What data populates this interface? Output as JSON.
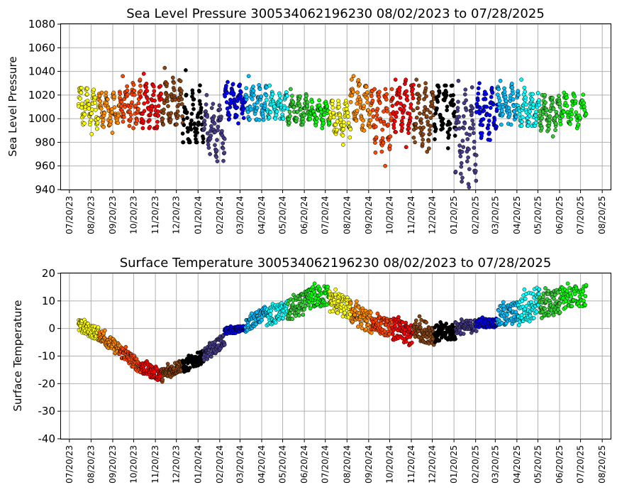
{
  "chart_data": [
    {
      "type": "scatter",
      "title": "Sea Level Pressure 300534062196230  08/02/2023 to 07/28/2025",
      "xlabel": "",
      "ylabel": "Sea Level Pressure",
      "ylim": [
        940,
        1080
      ],
      "yticks": [
        940,
        960,
        980,
        1000,
        1020,
        1040,
        1060,
        1080
      ],
      "xlim": [
        "2023-07-08",
        "2025-09-01"
      ],
      "xticks": [
        "07/20/23",
        "08/20/23",
        "09/20/23",
        "10/20/23",
        "11/20/23",
        "12/20/23",
        "01/20/24",
        "02/20/24",
        "03/20/24",
        "04/20/24",
        "05/20/24",
        "06/20/24",
        "07/20/24",
        "08/20/24",
        "09/20/24",
        "10/20/24",
        "11/20/24",
        "12/20/24",
        "01/20/25",
        "02/20/25",
        "03/20/25",
        "04/20/25",
        "05/20/25",
        "06/20/25",
        "07/20/25",
        "08/20/25"
      ],
      "grid": true,
      "segment_colors": [
        "#ffff00",
        "#ff8c00",
        "#ff4500",
        "#ff0000",
        "#8b4513",
        "#000000",
        "#483d8b",
        "#0000ff",
        "#00bfff",
        "#00ffff",
        "#32cd32",
        "#00ff00",
        "#ffff00",
        "#ff8c00",
        "#ff4500",
        "#ff0000",
        "#8b4513",
        "#000000",
        "#483d8b",
        "#0000ff",
        "#00bfff",
        "#00ffff",
        "#32cd32",
        "#00ff00"
      ],
      "segments": [
        {
          "start": "2023-08-02",
          "end": "2023-08-31",
          "color_index": 0,
          "center": 1010,
          "low": 987,
          "high": 1026
        },
        {
          "start": "2023-08-31",
          "end": "2023-09-30",
          "color_index": 1,
          "center": 1007,
          "low": 988,
          "high": 1022
        },
        {
          "start": "2023-09-30",
          "end": "2023-10-30",
          "color_index": 2,
          "center": 1013,
          "low": 992,
          "high": 1036
        },
        {
          "start": "2023-10-30",
          "end": "2023-11-29",
          "color_index": 3,
          "center": 1010,
          "low": 992,
          "high": 1038
        },
        {
          "start": "2023-11-29",
          "end": "2023-12-29",
          "color_index": 4,
          "center": 1012,
          "low": 995,
          "high": 1043
        },
        {
          "start": "2023-12-29",
          "end": "2024-01-28",
          "color_index": 5,
          "center": 1000,
          "low": 980,
          "high": 1041
        },
        {
          "start": "2024-01-28",
          "end": "2024-02-27",
          "color_index": 6,
          "center": 990,
          "low": 964,
          "high": 1020
        },
        {
          "start": "2024-02-27",
          "end": "2024-03-28",
          "color_index": 7,
          "center": 1015,
          "low": 996,
          "high": 1031
        },
        {
          "start": "2024-03-28",
          "end": "2024-04-27",
          "color_index": 8,
          "center": 1012,
          "low": 999,
          "high": 1036
        },
        {
          "start": "2024-04-27",
          "end": "2024-05-27",
          "color_index": 9,
          "center": 1010,
          "low": 1000,
          "high": 1028
        },
        {
          "start": "2024-05-27",
          "end": "2024-06-26",
          "color_index": 10,
          "center": 1008,
          "low": 995,
          "high": 1025
        },
        {
          "start": "2024-06-26",
          "end": "2024-07-26",
          "color_index": 11,
          "center": 1005,
          "low": 992,
          "high": 1016
        },
        {
          "start": "2024-07-26",
          "end": "2024-08-25",
          "color_index": 12,
          "center": 1000,
          "low": 978,
          "high": 1015
        },
        {
          "start": "2024-08-25",
          "end": "2024-09-24",
          "color_index": 13,
          "center": 1012,
          "low": 990,
          "high": 1036
        },
        {
          "start": "2024-09-24",
          "end": "2024-10-24",
          "color_index": 14,
          "center": 1000,
          "low": 960,
          "high": 1025
        },
        {
          "start": "2024-10-24",
          "end": "2024-11-23",
          "color_index": 15,
          "center": 1010,
          "low": 976,
          "high": 1033
        },
        {
          "start": "2024-11-23",
          "end": "2024-12-23",
          "color_index": 16,
          "center": 1003,
          "low": 972,
          "high": 1033
        },
        {
          "start": "2024-12-23",
          "end": "2025-01-22",
          "color_index": 17,
          "center": 1008,
          "low": 975,
          "high": 1028
        },
        {
          "start": "2025-01-22",
          "end": "2025-02-21",
          "color_index": 18,
          "center": 985,
          "low": 942,
          "high": 1032
        },
        {
          "start": "2025-02-21",
          "end": "2025-03-23",
          "color_index": 19,
          "center": 1005,
          "low": 982,
          "high": 1030
        },
        {
          "start": "2025-03-23",
          "end": "2025-04-22",
          "color_index": 20,
          "center": 1012,
          "low": 995,
          "high": 1032
        },
        {
          "start": "2025-04-22",
          "end": "2025-05-22",
          "color_index": 21,
          "center": 1008,
          "low": 994,
          "high": 1033
        },
        {
          "start": "2025-05-22",
          "end": "2025-06-21",
          "color_index": 22,
          "center": 1005,
          "low": 985,
          "high": 1020
        },
        {
          "start": "2025-06-21",
          "end": "2025-07-28",
          "color_index": 23,
          "center": 1008,
          "low": 992,
          "high": 1022
        }
      ]
    },
    {
      "type": "scatter",
      "title": "Surface Temperature 300534062196230  08/02/2023 to 07/28/2025",
      "xlabel": "",
      "ylabel": "Surface Temperature",
      "ylim": [
        -40,
        20
      ],
      "yticks": [
        -40,
        -30,
        -20,
        -10,
        0,
        10,
        20
      ],
      "xlim": [
        "2023-07-08",
        "2025-09-01"
      ],
      "xticks": [
        "07/20/23",
        "08/20/23",
        "09/20/23",
        "10/20/23",
        "11/20/23",
        "12/20/23",
        "01/20/24",
        "02/20/24",
        "03/20/24",
        "04/20/24",
        "05/20/24",
        "06/20/24",
        "07/20/24",
        "08/20/24",
        "09/20/24",
        "10/20/24",
        "11/20/24",
        "12/20/24",
        "01/20/25",
        "02/20/25",
        "03/20/25",
        "04/20/25",
        "05/20/25",
        "06/20/25",
        "07/20/25",
        "08/20/25"
      ],
      "grid": true,
      "segment_colors": [
        "#ffff00",
        "#ff8c00",
        "#ff4500",
        "#ff0000",
        "#8b4513",
        "#000000",
        "#483d8b",
        "#0000ff",
        "#00bfff",
        "#00ffff",
        "#32cd32",
        "#00ff00",
        "#ffff00",
        "#ff8c00",
        "#ff4500",
        "#ff0000",
        "#8b4513",
        "#000000",
        "#483d8b",
        "#0000ff",
        "#00bfff",
        "#00ffff",
        "#32cd32",
        "#00ff00"
      ],
      "segments": [
        {
          "start": "2023-08-02",
          "end": "2023-08-31",
          "color_index": 0,
          "from": 1,
          "to": -2,
          "spread": 3
        },
        {
          "start": "2023-08-31",
          "end": "2023-09-30",
          "color_index": 1,
          "from": -2,
          "to": -8,
          "spread": 3
        },
        {
          "start": "2023-09-30",
          "end": "2023-10-30",
          "color_index": 2,
          "from": -8,
          "to": -14,
          "spread": 3
        },
        {
          "start": "2023-10-30",
          "end": "2023-11-29",
          "color_index": 3,
          "from": -14,
          "to": -17,
          "spread": 3
        },
        {
          "start": "2023-11-29",
          "end": "2023-12-29",
          "color_index": 4,
          "from": -17,
          "to": -13,
          "spread": 3
        },
        {
          "start": "2023-12-29",
          "end": "2024-01-28",
          "color_index": 5,
          "from": -14,
          "to": -10,
          "spread": 3
        },
        {
          "start": "2024-01-28",
          "end": "2024-02-27",
          "color_index": 6,
          "from": -10,
          "to": -4,
          "spread": 3
        },
        {
          "start": "2024-02-27",
          "end": "2024-03-28",
          "color_index": 7,
          "from": -1,
          "to": 0,
          "spread": 1.5
        },
        {
          "start": "2024-03-28",
          "end": "2024-04-27",
          "color_index": 8,
          "from": 1,
          "to": 6,
          "spread": 3
        },
        {
          "start": "2024-04-27",
          "end": "2024-05-27",
          "color_index": 9,
          "from": 4,
          "to": 7,
          "spread": 4
        },
        {
          "start": "2024-05-27",
          "end": "2024-06-26",
          "color_index": 10,
          "from": 6,
          "to": 10,
          "spread": 5
        },
        {
          "start": "2024-06-26",
          "end": "2024-07-26",
          "color_index": 11,
          "from": 11,
          "to": 12,
          "spread": 5
        },
        {
          "start": "2024-07-26",
          "end": "2024-08-25",
          "color_index": 12,
          "from": 10,
          "to": 7,
          "spread": 5
        },
        {
          "start": "2024-08-25",
          "end": "2024-09-24",
          "color_index": 13,
          "from": 6,
          "to": 2,
          "spread": 5
        },
        {
          "start": "2024-09-24",
          "end": "2024-10-24",
          "color_index": 14,
          "from": 2,
          "to": 0,
          "spread": 4
        },
        {
          "start": "2024-10-24",
          "end": "2024-11-23",
          "color_index": 15,
          "from": 0,
          "to": -3,
          "spread": 5
        },
        {
          "start": "2024-11-23",
          "end": "2024-12-23",
          "color_index": 16,
          "from": 0,
          "to": -2,
          "spread": 5
        },
        {
          "start": "2024-12-23",
          "end": "2025-01-22",
          "color_index": 17,
          "from": -2,
          "to": -1,
          "spread": 4
        },
        {
          "start": "2025-01-22",
          "end": "2025-02-21",
          "color_index": 18,
          "from": 0,
          "to": 1,
          "spread": 3
        },
        {
          "start": "2025-02-21",
          "end": "2025-03-23",
          "color_index": 19,
          "from": 2,
          "to": 2,
          "spread": 2
        },
        {
          "start": "2025-03-23",
          "end": "2025-04-22",
          "color_index": 20,
          "from": 4,
          "to": 6,
          "spread": 5
        },
        {
          "start": "2025-04-22",
          "end": "2025-05-22",
          "color_index": 21,
          "from": 6,
          "to": 10,
          "spread": 7
        },
        {
          "start": "2025-05-22",
          "end": "2025-06-21",
          "color_index": 22,
          "from": 8,
          "to": 10,
          "spread": 6
        },
        {
          "start": "2025-06-21",
          "end": "2025-07-28",
          "color_index": 23,
          "from": 11,
          "to": 12,
          "spread": 5
        }
      ]
    }
  ]
}
